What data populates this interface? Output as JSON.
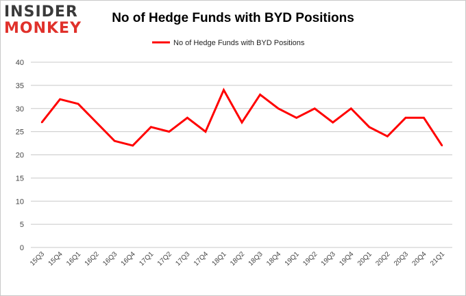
{
  "logo": {
    "line1": "INSIDER",
    "line2": "MONKEY"
  },
  "colors": {
    "series": "#ff0000",
    "grid": "#c8c8c8",
    "axis_text": "#444444"
  },
  "chart_data": {
    "type": "line",
    "title": "No of Hedge Funds with BYD Positions",
    "xlabel": "",
    "ylabel": "",
    "categories": [
      "15Q3",
      "15Q4",
      "16Q1",
      "16Q2",
      "16Q3",
      "16Q4",
      "17Q1",
      "17Q2",
      "17Q3",
      "17Q4",
      "18Q1",
      "18Q2",
      "18Q3",
      "18Q4",
      "19Q1",
      "19Q2",
      "19Q3",
      "19Q4",
      "20Q1",
      "20Q2",
      "20Q3",
      "20Q4",
      "21Q1"
    ],
    "series": [
      {
        "name": "No of Hedge Funds with BYD Positions",
        "values": [
          27,
          32,
          31,
          27,
          23,
          22,
          26,
          25,
          28,
          25,
          34,
          27,
          33,
          30,
          28,
          30,
          27,
          30,
          26,
          24,
          28,
          28,
          22
        ]
      }
    ],
    "ylim": [
      0,
      40
    ],
    "yticks": [
      0,
      5,
      10,
      15,
      20,
      25,
      30,
      35,
      40
    ],
    "grid": true,
    "legend_position": "top"
  }
}
